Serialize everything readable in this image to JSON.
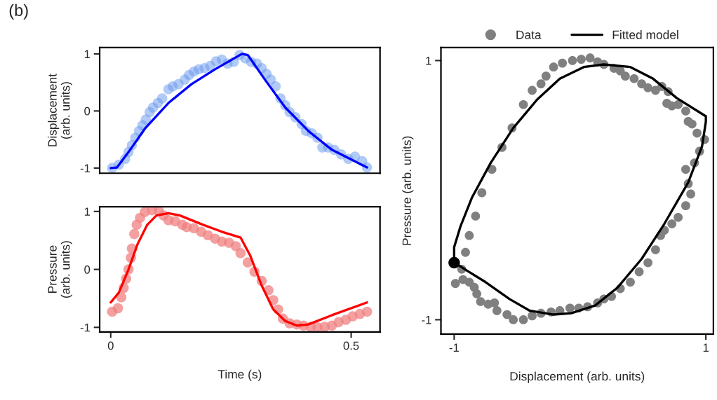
{
  "chart_data": [
    {
      "type": "scatter",
      "ylabel": "Displacement\n(arb. units)",
      "annotations": [
        "(b)"
      ],
      "xlim": [
        -0.023,
        0.56
      ],
      "ylim": [
        -1.09,
        1.11
      ],
      "yticks": [
        -1,
        0,
        1
      ],
      "tick_labels": "y",
      "series": [
        {
          "marker": "circle",
          "color": "#6495ed",
          "x": [
            0.003,
            0.017,
            0.03,
            0.037,
            0.044,
            0.051,
            0.059,
            0.066,
            0.073,
            0.081,
            0.088,
            0.098,
            0.107,
            0.12,
            0.129,
            0.141,
            0.154,
            0.163,
            0.173,
            0.183,
            0.195,
            0.207,
            0.219,
            0.231,
            0.243,
            0.256,
            0.268,
            0.28,
            0.292,
            0.304,
            0.314,
            0.324,
            0.333,
            0.343,
            0.353,
            0.363,
            0.372,
            0.384,
            0.397,
            0.406,
            0.418,
            0.43,
            0.44,
            0.452,
            0.465,
            0.479,
            0.494,
            0.508,
            0.523,
            0.533
          ],
          "values": [
            -1.0,
            -0.94,
            -0.84,
            -0.72,
            -0.6,
            -0.47,
            -0.35,
            -0.25,
            -0.15,
            -0.02,
            0.06,
            0.14,
            0.22,
            0.38,
            0.43,
            0.47,
            0.55,
            0.63,
            0.69,
            0.73,
            0.75,
            0.79,
            0.87,
            0.9,
            0.83,
            0.86,
            0.98,
            0.92,
            0.86,
            0.83,
            0.75,
            0.65,
            0.55,
            0.43,
            0.22,
            0.1,
            -0.02,
            -0.11,
            -0.23,
            -0.35,
            -0.39,
            -0.47,
            -0.64,
            -0.64,
            -0.68,
            -0.76,
            -0.84,
            -0.8,
            -0.88,
            -0.99
          ]
        },
        {
          "type": "line",
          "color": "#0000ff",
          "x": [
            0.0,
            0.013,
            0.037,
            0.071,
            0.12,
            0.168,
            0.217,
            0.273,
            0.285,
            0.324,
            0.363,
            0.411,
            0.46,
            0.533
          ],
          "values": [
            -1.0,
            -0.99,
            -0.72,
            -0.31,
            0.14,
            0.47,
            0.73,
            1.0,
            0.98,
            0.51,
            0.06,
            -0.35,
            -0.68,
            -0.99
          ]
        }
      ]
    },
    {
      "type": "scatter",
      "xlabel": "Time (s)",
      "ylabel": "Pressure\n(arb. units)",
      "xlim": [
        -0.023,
        0.56
      ],
      "ylim": [
        -1.08,
        1.08
      ],
      "xticks": [
        0,
        0.5
      ],
      "yticks": [
        -1,
        0,
        1
      ],
      "series": [
        {
          "marker": "circle",
          "color": "#f08080",
          "x": [
            0.003,
            0.015,
            0.022,
            0.027,
            0.032,
            0.037,
            0.042,
            0.044,
            0.049,
            0.054,
            0.061,
            0.071,
            0.086,
            0.1,
            0.11,
            0.12,
            0.134,
            0.149,
            0.158,
            0.173,
            0.188,
            0.202,
            0.217,
            0.231,
            0.246,
            0.26,
            0.27,
            0.285,
            0.299,
            0.314,
            0.328,
            0.338,
            0.348,
            0.358,
            0.372,
            0.387,
            0.401,
            0.416,
            0.43,
            0.445,
            0.46,
            0.474,
            0.489,
            0.503,
            0.518,
            0.533
          ],
          "values": [
            -0.73,
            -0.67,
            -0.48,
            -0.32,
            -0.16,
            0.0,
            0.2,
            0.36,
            0.61,
            0.77,
            0.89,
            0.99,
            1.02,
            1.01,
            0.93,
            0.85,
            0.83,
            0.77,
            0.73,
            0.71,
            0.65,
            0.59,
            0.53,
            0.48,
            0.46,
            0.4,
            0.28,
            0.12,
            -0.04,
            -0.2,
            -0.36,
            -0.53,
            -0.69,
            -0.85,
            -0.93,
            -0.95,
            -0.97,
            -0.99,
            -1.0,
            -0.99,
            -0.97,
            -0.91,
            -0.87,
            -0.81,
            -0.77,
            -0.73
          ]
        },
        {
          "type": "line",
          "color": "#ff0000",
          "x": [
            0.0,
            0.017,
            0.037,
            0.056,
            0.076,
            0.095,
            0.12,
            0.144,
            0.192,
            0.231,
            0.27,
            0.29,
            0.314,
            0.338,
            0.363,
            0.387,
            0.411,
            0.46,
            0.533
          ],
          "values": [
            -0.57,
            -0.4,
            0.0,
            0.44,
            0.77,
            0.93,
            0.97,
            0.93,
            0.77,
            0.65,
            0.55,
            0.24,
            -0.28,
            -0.69,
            -0.89,
            -0.97,
            -0.95,
            -0.79,
            -0.57
          ]
        }
      ]
    },
    {
      "type": "scatter",
      "xlabel": "Displacement (arb. units)",
      "ylabel": "Pressure (arb. units)",
      "xlim": [
        -1.105,
        1.06
      ],
      "ylim": [
        -1.11,
        1.1
      ],
      "xticks": [
        -1,
        1
      ],
      "yticks": [
        -1,
        1
      ],
      "legend": "top",
      "series": [
        {
          "marker": "circle",
          "name": "Data",
          "color": "#808080",
          "x": [
            -0.91,
            -0.88,
            -0.83,
            -0.78,
            -0.7,
            -0.62,
            -0.54,
            -0.45,
            -0.38,
            -0.31,
            -0.27,
            -0.21,
            -0.14,
            -0.06,
            0.01,
            0.08,
            0.14,
            0.19,
            0.27,
            0.32,
            0.36,
            0.43,
            0.49,
            0.54,
            0.6,
            0.65,
            0.7,
            0.69,
            0.73,
            0.78,
            0.84,
            0.86,
            0.89,
            0.93,
            0.99,
            0.95,
            0.91,
            0.84,
            0.86,
            0.88,
            0.84,
            0.78,
            0.73,
            0.67,
            0.64,
            0.6,
            0.54,
            0.47,
            0.4,
            0.32,
            0.25,
            0.19,
            0.14,
            0.06,
            -0.01,
            -0.08,
            -0.16,
            -0.23,
            -0.31,
            -0.38,
            -0.45,
            -0.53,
            -0.58,
            -0.66,
            -0.68,
            -0.73,
            -0.79,
            -0.82,
            -0.84,
            -0.88,
            -0.93,
            -0.99,
            -0.94
          ],
          "values": [
            -0.48,
            -0.35,
            -0.2,
            -0.02,
            0.16,
            0.33,
            0.48,
            0.66,
            0.77,
            0.82,
            0.88,
            0.95,
            0.98,
            1.0,
            1.01,
            1.02,
            0.99,
            0.97,
            0.94,
            0.92,
            0.88,
            0.86,
            0.82,
            0.79,
            0.77,
            0.8,
            0.76,
            0.67,
            0.65,
            0.66,
            0.61,
            0.53,
            0.51,
            0.44,
            0.39,
            0.3,
            0.21,
            0.16,
            0.05,
            -0.03,
            -0.12,
            -0.21,
            -0.26,
            -0.31,
            -0.35,
            -0.46,
            -0.56,
            -0.63,
            -0.71,
            -0.76,
            -0.82,
            -0.84,
            -0.87,
            -0.9,
            -0.91,
            -0.91,
            -0.93,
            -0.94,
            -0.95,
            -0.97,
            -1.0,
            -1.0,
            -0.96,
            -0.93,
            -0.87,
            -0.88,
            -0.86,
            -0.8,
            -0.75,
            -0.71,
            -0.69,
            -0.72,
            -0.61
          ]
        },
        {
          "type": "line",
          "name": "Fitted model",
          "color": "#000000",
          "x": [
            -1.0,
            -1.0,
            -0.95,
            -0.86,
            -0.71,
            -0.53,
            -0.34,
            -0.16,
            0.03,
            0.19,
            0.4,
            0.58,
            0.77,
            1.0,
            1.0,
            0.97,
            0.86,
            0.67,
            0.49,
            0.3,
            0.12,
            -0.07,
            -0.21,
            -0.4,
            -0.56,
            -0.75,
            -0.9,
            -0.98
          ],
          "values": [
            -0.56,
            -0.44,
            -0.28,
            -0.06,
            0.21,
            0.48,
            0.7,
            0.86,
            0.95,
            0.97,
            0.95,
            0.86,
            0.71,
            0.57,
            0.53,
            0.34,
            0.06,
            -0.26,
            -0.53,
            -0.75,
            -0.89,
            -0.95,
            -0.96,
            -0.93,
            -0.84,
            -0.71,
            -0.62,
            -0.57
          ]
        },
        {
          "marker": "circle",
          "color": "#000000",
          "x": [
            -1.0
          ],
          "values": [
            -0.56
          ]
        }
      ]
    }
  ]
}
